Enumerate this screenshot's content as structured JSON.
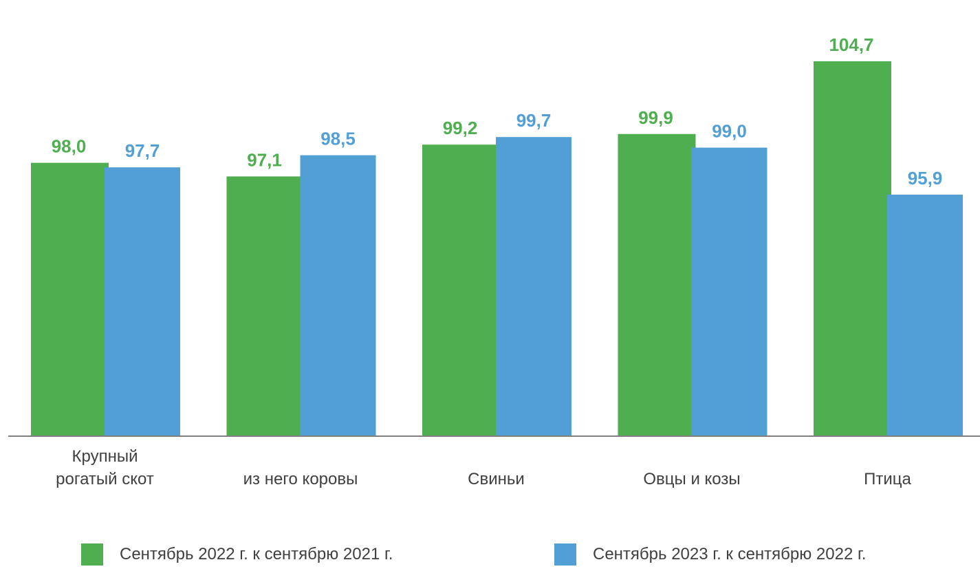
{
  "chart_data": {
    "type": "bar",
    "categories": [
      [
        "Крупный",
        "рогатый скот"
      ],
      [
        "из него коровы"
      ],
      [
        "Свиньи"
      ],
      [
        "Овцы и козы"
      ],
      [
        "Птица"
      ]
    ],
    "series": [
      {
        "name": "Сентябрь 2022 г. к сентябрю 2021 г.",
        "color": "#4fae4f",
        "values": [
          98.0,
          97.1,
          99.2,
          99.9,
          104.7
        ],
        "labels": [
          "98,0",
          "97,1",
          "99,2",
          "99,9",
          "104,7"
        ]
      },
      {
        "name": "Сентябрь 2023 г. к сентябрю 2022 г.",
        "color": "#529fd6",
        "values": [
          97.7,
          98.5,
          99.7,
          99.0,
          95.9
        ],
        "labels": [
          "97,7",
          "98,5",
          "99,7",
          "99,0",
          "95,9"
        ]
      }
    ],
    "axis_color": "#808080",
    "label_text_color": "#404040",
    "legend_position": "bottom"
  }
}
